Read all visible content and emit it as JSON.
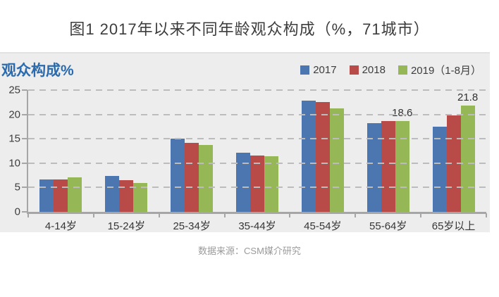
{
  "title": "图1  2017年以来不同年龄观众构成（%，71城市）",
  "source": "数据来源：CSM媒介研究",
  "panel": {
    "background": "#ededed",
    "accent_color": "#2a6aad"
  },
  "chart_data": {
    "type": "bar",
    "title": "图1  2017年以来不同年龄观众构成（%，71城市）",
    "ylabel": "观众构成%",
    "xlabel": "",
    "ylim": [
      0,
      25
    ],
    "yticks": [
      0,
      5,
      10,
      15,
      20,
      25
    ],
    "grid": "dashed-horizontal",
    "legend_position": "top-right",
    "categories": [
      "4-14岁",
      "15-24岁",
      "25-34岁",
      "35-44岁",
      "45-54岁",
      "55-64岁",
      "65岁以上"
    ],
    "series": [
      {
        "name": "2017",
        "color": "#4b76af",
        "values": [
          6.7,
          7.3,
          15.0,
          12.2,
          22.9,
          18.2,
          17.5
        ]
      },
      {
        "name": "2018",
        "color": "#b84b48",
        "values": [
          6.6,
          6.5,
          14.2,
          11.5,
          22.6,
          18.7,
          19.8
        ]
      },
      {
        "name": "2019（1-8月）",
        "color": "#95b755",
        "values": [
          7.1,
          5.9,
          13.8,
          11.4,
          21.3,
          18.6,
          21.8
        ]
      }
    ],
    "annotations": [
      {
        "category_index": 5,
        "series_index": 2,
        "text": "18.6"
      },
      {
        "category_index": 6,
        "series_index": 2,
        "text": "21.8"
      }
    ]
  }
}
